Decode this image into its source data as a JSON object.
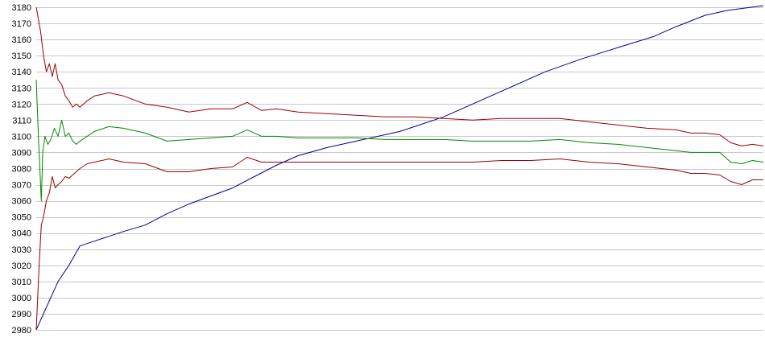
{
  "chart_data": {
    "type": "line",
    "title": "",
    "xlabel": "",
    "ylabel": "",
    "ylim": [
      2980,
      3180
    ],
    "yticks": [
      2980,
      2990,
      3000,
      3010,
      3020,
      3030,
      3040,
      3050,
      3060,
      3070,
      3080,
      3090,
      3100,
      3110,
      3120,
      3130,
      3140,
      3150,
      3160,
      3170,
      3180
    ],
    "xlim": [
      0,
      1000
    ],
    "grid": "horizontal",
    "legend": "none",
    "series": [
      {
        "color": "#000099",
        "points": [
          [
            0,
            2980
          ],
          [
            15,
            2995
          ],
          [
            30,
            3010
          ],
          [
            45,
            3020
          ],
          [
            60,
            3032
          ],
          [
            80,
            3035
          ],
          [
            100,
            3038
          ],
          [
            120,
            3041
          ],
          [
            150,
            3045
          ],
          [
            180,
            3052
          ],
          [
            210,
            3058
          ],
          [
            240,
            3063
          ],
          [
            270,
            3068
          ],
          [
            300,
            3075
          ],
          [
            330,
            3082
          ],
          [
            360,
            3088
          ],
          [
            400,
            3093
          ],
          [
            450,
            3098
          ],
          [
            500,
            3103
          ],
          [
            560,
            3112
          ],
          [
            600,
            3120
          ],
          [
            650,
            3130
          ],
          [
            700,
            3140
          ],
          [
            750,
            3148
          ],
          [
            800,
            3155
          ],
          [
            850,
            3162
          ],
          [
            880,
            3168
          ],
          [
            920,
            3175
          ],
          [
            950,
            3178
          ],
          [
            1000,
            3181
          ]
        ]
      },
      {
        "color": "#990000",
        "points": [
          [
            0,
            3180
          ],
          [
            6,
            3165
          ],
          [
            10,
            3150
          ],
          [
            14,
            3140
          ],
          [
            18,
            3145
          ],
          [
            22,
            3137
          ],
          [
            26,
            3145
          ],
          [
            30,
            3135
          ],
          [
            35,
            3132
          ],
          [
            40,
            3125
          ],
          [
            45,
            3122
          ],
          [
            50,
            3118
          ],
          [
            55,
            3120
          ],
          [
            60,
            3118
          ],
          [
            70,
            3122
          ],
          [
            80,
            3125
          ],
          [
            100,
            3127
          ],
          [
            120,
            3125
          ],
          [
            150,
            3120
          ],
          [
            180,
            3118
          ],
          [
            210,
            3115
          ],
          [
            240,
            3117
          ],
          [
            270,
            3117
          ],
          [
            290,
            3121
          ],
          [
            310,
            3116
          ],
          [
            330,
            3117
          ],
          [
            360,
            3115
          ],
          [
            400,
            3114
          ],
          [
            440,
            3113
          ],
          [
            480,
            3112
          ],
          [
            520,
            3112
          ],
          [
            560,
            3111
          ],
          [
            600,
            3110
          ],
          [
            640,
            3111
          ],
          [
            680,
            3111
          ],
          [
            720,
            3111
          ],
          [
            760,
            3109
          ],
          [
            800,
            3107
          ],
          [
            840,
            3105
          ],
          [
            880,
            3104
          ],
          [
            900,
            3102
          ],
          [
            920,
            3102
          ],
          [
            940,
            3101
          ],
          [
            955,
            3096
          ],
          [
            970,
            3094
          ],
          [
            985,
            3095
          ],
          [
            1000,
            3094
          ]
        ]
      },
      {
        "color": "#008800",
        "points": [
          [
            0,
            3135
          ],
          [
            3,
            3100
          ],
          [
            5,
            3080
          ],
          [
            7,
            3060
          ],
          [
            9,
            3090
          ],
          [
            12,
            3100
          ],
          [
            16,
            3095
          ],
          [
            20,
            3098
          ],
          [
            25,
            3105
          ],
          [
            30,
            3100
          ],
          [
            35,
            3110
          ],
          [
            40,
            3100
          ],
          [
            45,
            3102
          ],
          [
            50,
            3097
          ],
          [
            55,
            3095
          ],
          [
            60,
            3097
          ],
          [
            70,
            3100
          ],
          [
            80,
            3103
          ],
          [
            100,
            3106
          ],
          [
            120,
            3105
          ],
          [
            150,
            3102
          ],
          [
            180,
            3097
          ],
          [
            210,
            3098
          ],
          [
            240,
            3099
          ],
          [
            270,
            3100
          ],
          [
            290,
            3104
          ],
          [
            310,
            3100
          ],
          [
            330,
            3100
          ],
          [
            360,
            3099
          ],
          [
            400,
            3099
          ],
          [
            440,
            3099
          ],
          [
            480,
            3098
          ],
          [
            520,
            3098
          ],
          [
            560,
            3098
          ],
          [
            600,
            3097
          ],
          [
            640,
            3097
          ],
          [
            680,
            3097
          ],
          [
            720,
            3098
          ],
          [
            760,
            3096
          ],
          [
            800,
            3095
          ],
          [
            840,
            3093
          ],
          [
            880,
            3091
          ],
          [
            900,
            3090
          ],
          [
            920,
            3090
          ],
          [
            940,
            3090
          ],
          [
            955,
            3084
          ],
          [
            970,
            3083
          ],
          [
            985,
            3085
          ],
          [
            1000,
            3084
          ]
        ]
      },
      {
        "color": "#990000",
        "points": [
          [
            0,
            2980
          ],
          [
            4,
            3020
          ],
          [
            7,
            3045
          ],
          [
            10,
            3050
          ],
          [
            14,
            3060
          ],
          [
            18,
            3065
          ],
          [
            22,
            3075
          ],
          [
            26,
            3068
          ],
          [
            30,
            3070
          ],
          [
            35,
            3072
          ],
          [
            40,
            3075
          ],
          [
            45,
            3074
          ],
          [
            50,
            3076
          ],
          [
            55,
            3078
          ],
          [
            60,
            3080
          ],
          [
            70,
            3083
          ],
          [
            80,
            3084
          ],
          [
            100,
            3086
          ],
          [
            120,
            3084
          ],
          [
            150,
            3083
          ],
          [
            180,
            3078
          ],
          [
            210,
            3078
          ],
          [
            240,
            3080
          ],
          [
            270,
            3081
          ],
          [
            290,
            3087
          ],
          [
            310,
            3084
          ],
          [
            330,
            3084
          ],
          [
            360,
            3084
          ],
          [
            400,
            3084
          ],
          [
            440,
            3084
          ],
          [
            480,
            3084
          ],
          [
            520,
            3084
          ],
          [
            560,
            3084
          ],
          [
            600,
            3084
          ],
          [
            640,
            3085
          ],
          [
            680,
            3085
          ],
          [
            720,
            3086
          ],
          [
            760,
            3084
          ],
          [
            800,
            3083
          ],
          [
            840,
            3081
          ],
          [
            880,
            3079
          ],
          [
            900,
            3077
          ],
          [
            920,
            3077
          ],
          [
            940,
            3076
          ],
          [
            955,
            3072
          ],
          [
            970,
            3070
          ],
          [
            985,
            3073
          ],
          [
            1000,
            3073
          ]
        ]
      }
    ]
  }
}
